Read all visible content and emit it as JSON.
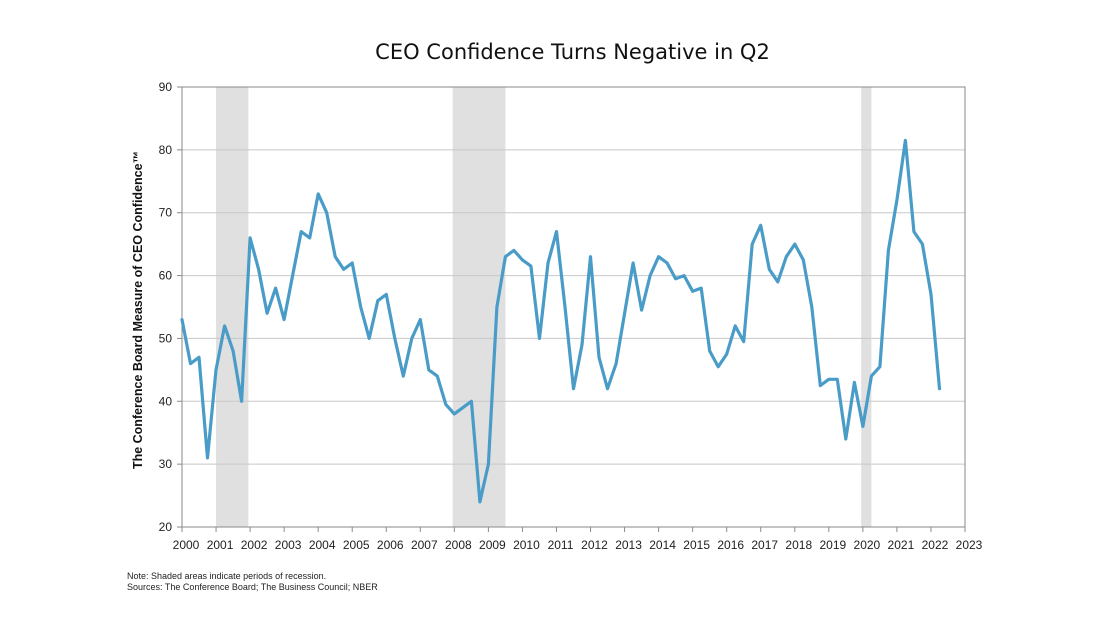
{
  "chart_data": {
    "type": "line",
    "title": "CEO Confidence Turns Negative in Q2",
    "ylabel": "The Conference Board Measure of CEO Confidence™",
    "xlabel": "",
    "xlim": [
      2000,
      2023
    ],
    "ylim": [
      20,
      90
    ],
    "x_ticks": [
      "2000",
      "2001",
      "2002",
      "2003",
      "2004",
      "2005",
      "2006",
      "2007",
      "2008",
      "2009",
      "2010",
      "2011",
      "2012",
      "2013",
      "2014",
      "2015",
      "2016",
      "2017",
      "2018",
      "2019",
      "2020",
      "2021",
      "2022",
      "2023"
    ],
    "y_ticks": [
      20,
      30,
      40,
      50,
      60,
      70,
      80,
      90
    ],
    "grid": true,
    "line_color": "#4a9cc8",
    "recession_color": "#e0e0e0",
    "recessions": [
      [
        2001.0,
        2001.95
      ],
      [
        2007.95,
        2009.5
      ],
      [
        2019.95,
        2020.25
      ]
    ],
    "series": [
      {
        "name": "",
        "points": [
          [
            2000.0,
            53
          ],
          [
            2000.25,
            46
          ],
          [
            2000.5,
            47
          ],
          [
            2000.75,
            31
          ],
          [
            2001.0,
            45
          ],
          [
            2001.25,
            52
          ],
          [
            2001.5,
            48
          ],
          [
            2001.75,
            40
          ],
          [
            2002.0,
            66
          ],
          [
            2002.25,
            61
          ],
          [
            2002.5,
            54
          ],
          [
            2002.75,
            58
          ],
          [
            2003.0,
            53
          ],
          [
            2003.25,
            60
          ],
          [
            2003.5,
            67
          ],
          [
            2003.75,
            66
          ],
          [
            2004.0,
            73
          ],
          [
            2004.25,
            70
          ],
          [
            2004.5,
            63
          ],
          [
            2004.75,
            61
          ],
          [
            2005.0,
            62
          ],
          [
            2005.25,
            55
          ],
          [
            2005.5,
            50
          ],
          [
            2005.75,
            56
          ],
          [
            2006.0,
            57
          ],
          [
            2006.25,
            50
          ],
          [
            2006.5,
            44
          ],
          [
            2006.75,
            50
          ],
          [
            2007.0,
            53
          ],
          [
            2007.25,
            45
          ],
          [
            2007.5,
            44
          ],
          [
            2007.75,
            39.5
          ],
          [
            2008.0,
            38
          ],
          [
            2008.25,
            39
          ],
          [
            2008.5,
            40
          ],
          [
            2008.75,
            24
          ],
          [
            2009.0,
            30
          ],
          [
            2009.25,
            55
          ],
          [
            2009.5,
            63
          ],
          [
            2009.75,
            64
          ],
          [
            2010.0,
            62.5
          ],
          [
            2010.25,
            61.5
          ],
          [
            2010.5,
            50
          ],
          [
            2010.75,
            62
          ],
          [
            2011.0,
            67
          ],
          [
            2011.25,
            55
          ],
          [
            2011.5,
            42
          ],
          [
            2011.75,
            49
          ],
          [
            2012.0,
            63
          ],
          [
            2012.25,
            47
          ],
          [
            2012.5,
            42
          ],
          [
            2012.75,
            46
          ],
          [
            2013.0,
            54
          ],
          [
            2013.25,
            62
          ],
          [
            2013.5,
            54.5
          ],
          [
            2013.75,
            60
          ],
          [
            2014.0,
            63
          ],
          [
            2014.25,
            62
          ],
          [
            2014.5,
            59.5
          ],
          [
            2014.75,
            60
          ],
          [
            2015.0,
            57.5
          ],
          [
            2015.25,
            58
          ],
          [
            2015.5,
            48
          ],
          [
            2015.75,
            45.5
          ],
          [
            2016.0,
            47.5
          ],
          [
            2016.25,
            52
          ],
          [
            2016.5,
            49.5
          ],
          [
            2016.75,
            65
          ],
          [
            2017.0,
            68
          ],
          [
            2017.25,
            61
          ],
          [
            2017.5,
            59
          ],
          [
            2017.75,
            63
          ],
          [
            2018.0,
            65
          ],
          [
            2018.25,
            62.5
          ],
          [
            2018.5,
            55
          ],
          [
            2018.75,
            42.5
          ],
          [
            2019.0,
            43.5
          ],
          [
            2019.25,
            43.5
          ],
          [
            2019.5,
            34
          ],
          [
            2019.75,
            43
          ],
          [
            2020.0,
            36
          ],
          [
            2020.25,
            44
          ],
          [
            2020.5,
            45.5
          ],
          [
            2020.75,
            64
          ],
          [
            2021.0,
            72
          ],
          [
            2021.25,
            81.5
          ],
          [
            2021.5,
            67
          ],
          [
            2021.75,
            65
          ],
          [
            2022.0,
            57
          ],
          [
            2022.25,
            42
          ]
        ]
      }
    ]
  },
  "footnotes": {
    "note": "Note: Shaded areas indicate periods of recession.",
    "sources": "Sources: The Conference Board; The Business Council; NBER"
  }
}
